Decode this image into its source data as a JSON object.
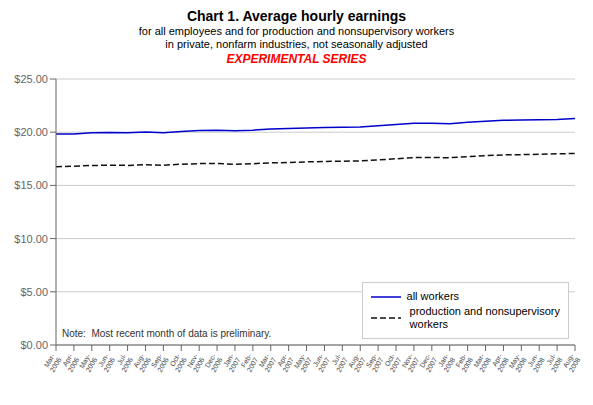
{
  "chart_data": {
    "type": "line",
    "title": "Chart 1. Average hourly earnings",
    "subtitle": [
      "for all employees and for production and nonsupervisory workers",
      "in private, nonfarm industries, not seasonally adjusted"
    ],
    "annotations": [
      {
        "text": "EXPERIMENTAL SERIES",
        "color": "#FF0000"
      },
      {
        "text": "Note:  Most recent month of data is preliminary."
      }
    ],
    "categories": [
      "Mar-\n2006",
      "Apr-\n2006",
      "May-\n2006",
      "Jun-\n2006",
      "Jul-\n2006",
      "Aug-\n2006",
      "Sep-\n2006",
      "Oct-\n2006",
      "Nov-\n2006",
      "Dec-\n2006",
      "Jan-\n2007",
      "Feb-\n2007",
      "Mar-\n2007",
      "Apr-\n2007",
      "May-\n2007",
      "Jun-\n2007",
      "Jul-\n2007",
      "Aug-\n2007",
      "Sep-\n2007",
      "Oct-\n2007",
      "Nov-\n2007",
      "Dec-\n2007",
      "Jan-\n2008",
      "Feb-\n2008",
      "Mar-\n2008",
      "Apr-\n2008",
      "May-\n2008",
      "Jun-\n2008",
      "Jul-\n2008",
      "Aug-\n2008"
    ],
    "series": [
      {
        "name": "all workers",
        "color": "#0000CC",
        "line_style": "solid",
        "values": [
          19.82,
          19.84,
          19.94,
          19.98,
          19.95,
          20.01,
          19.95,
          20.07,
          20.17,
          20.18,
          20.13,
          20.19,
          20.3,
          20.35,
          20.4,
          20.44,
          20.46,
          20.5,
          20.6,
          20.72,
          20.85,
          20.85,
          20.8,
          20.93,
          21.03,
          21.12,
          21.14,
          21.18,
          21.2,
          21.28
        ]
      },
      {
        "name": " production and nonsupervisory\n workers",
        "color": "#111111",
        "line_style": "dashed",
        "values": [
          16.76,
          16.8,
          16.87,
          16.9,
          16.88,
          16.94,
          16.9,
          16.99,
          17.05,
          17.05,
          16.99,
          17.04,
          17.12,
          17.15,
          17.21,
          17.25,
          17.27,
          17.3,
          17.4,
          17.5,
          17.61,
          17.62,
          17.6,
          17.7,
          17.79,
          17.87,
          17.89,
          17.93,
          17.97,
          18.0
        ]
      }
    ],
    "ylim": [
      0,
      25
    ],
    "yticks": [
      {
        "value": 0,
        "label": "$0.00"
      },
      {
        "value": 5,
        "label": "$5.00"
      },
      {
        "value": 10,
        "label": "$10.00"
      },
      {
        "value": 15,
        "label": "$15.00"
      },
      {
        "value": 20,
        "label": "$20.00"
      },
      {
        "value": 25,
        "label": "$25.00"
      }
    ],
    "grid": true,
    "legend": "lower right"
  }
}
